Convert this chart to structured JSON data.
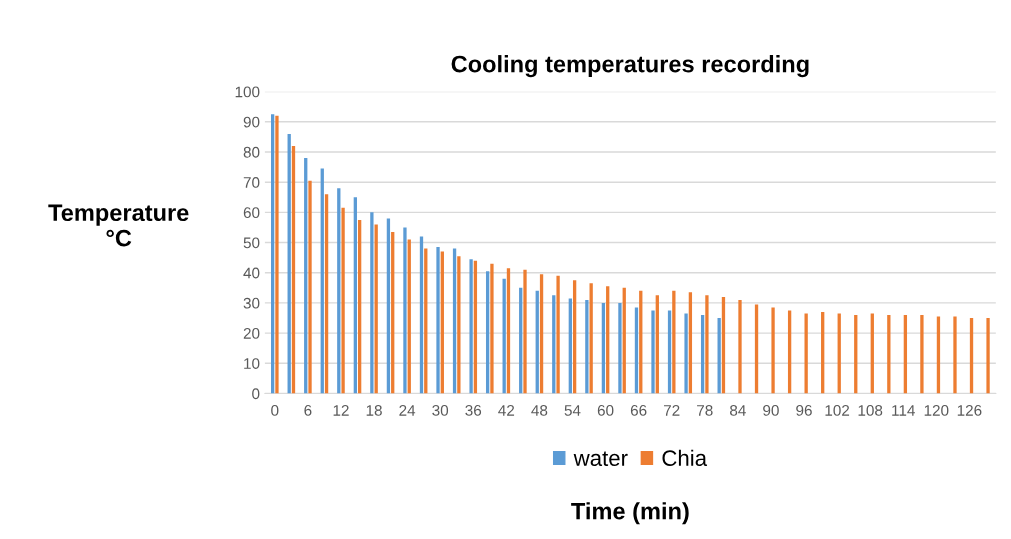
{
  "chart_data": {
    "type": "bar",
    "title": "Cooling temperatures recording",
    "xlabel": "Time (min)",
    "ylabel": "Temperature\n°C",
    "categories": [
      "0",
      null,
      "6",
      null,
      "12",
      null,
      "18",
      null,
      "24",
      null,
      "30",
      null,
      "36",
      null,
      "42",
      null,
      "48",
      null,
      "54",
      null,
      "60",
      null,
      "66",
      null,
      "72",
      null,
      "78",
      null,
      "84",
      null,
      "90",
      null,
      "96",
      null,
      "102",
      null,
      "108",
      null,
      "114",
      null,
      "120",
      null,
      "126",
      null
    ],
    "series": [
      {
        "name": "water",
        "color": "#5b9bd5",
        "values": [
          92.5,
          86,
          78,
          74.5,
          68,
          65,
          60,
          58,
          55,
          52,
          48.5,
          48,
          44.5,
          40.5,
          38,
          35,
          34,
          32.5,
          31.5,
          31,
          30,
          30,
          28.5,
          27.5,
          27.5,
          26.5,
          26,
          25,
          null,
          null,
          null,
          null,
          null,
          null,
          null,
          null,
          null,
          null,
          null,
          null,
          null,
          null,
          null,
          null
        ]
      },
      {
        "name": "Chia",
        "color": "#ed7d31",
        "values": [
          92,
          82,
          70.5,
          66,
          61.5,
          57.5,
          56,
          53.5,
          51,
          48,
          47,
          45.5,
          44,
          43,
          41.5,
          41,
          39.5,
          39,
          37.5,
          36.5,
          35.5,
          35,
          34,
          32.5,
          34,
          33.5,
          32.5,
          32,
          31,
          29.5,
          28.5,
          27.5,
          26.5,
          27,
          26.5,
          26,
          26.5,
          26,
          26,
          26,
          25.5,
          25.5,
          25,
          25
        ]
      }
    ],
    "ylim": [
      0,
      100
    ],
    "yticks": [
      0,
      10,
      20,
      30,
      40,
      50,
      60,
      70,
      80,
      90,
      100
    ],
    "grid": "y",
    "legend": "bottom"
  }
}
